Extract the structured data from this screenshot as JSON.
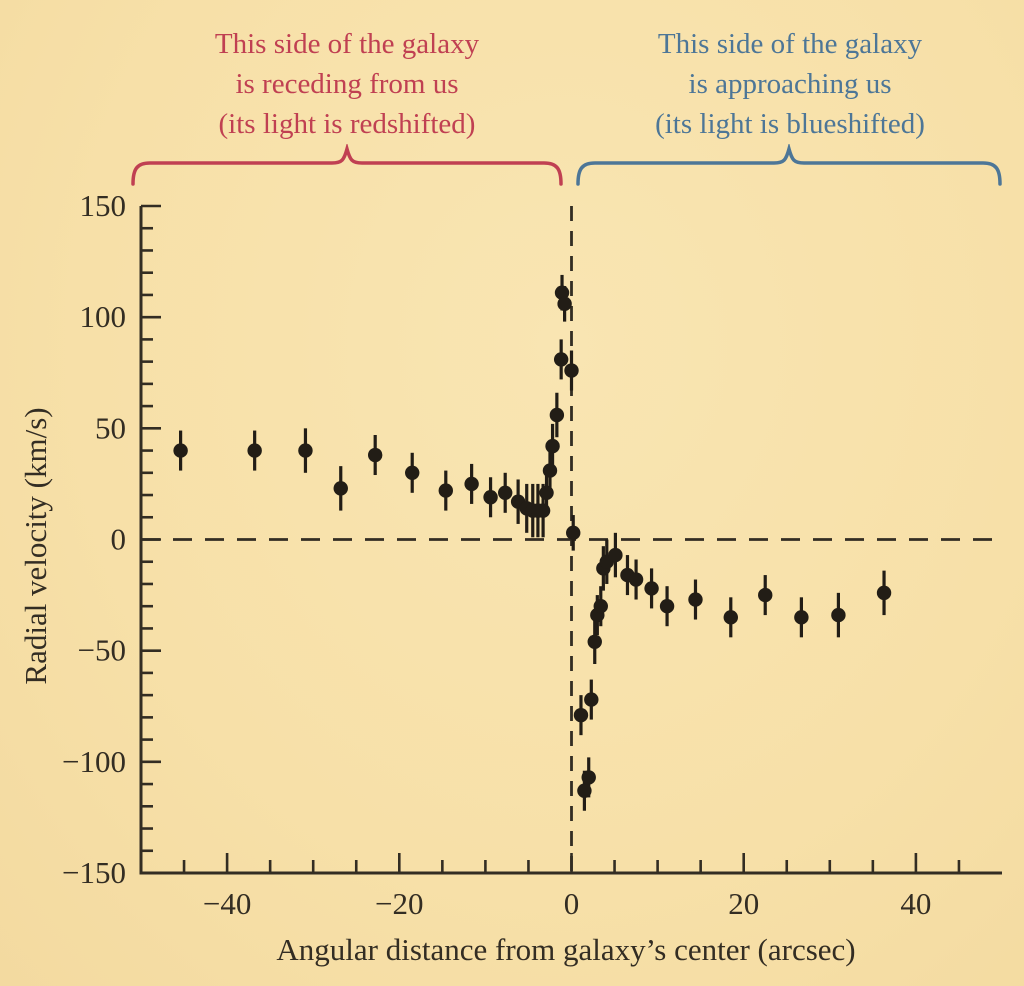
{
  "page": {
    "background": "#f7e0a8",
    "ink": "#332d23",
    "point_color": "#221d16",
    "red_accent": "#c04052",
    "blue_accent": "#4d7697"
  },
  "annotations": {
    "receding": {
      "line1": "This side of the galaxy",
      "line2": "is receding from us",
      "line3": "(its light is redshifted)"
    },
    "approaching": {
      "line1": "This side of the galaxy",
      "line2": "is approaching us",
      "line3": "(its light is blueshifted)"
    }
  },
  "chart_data": {
    "type": "scatter",
    "title": "",
    "xlabel": "Angular distance from galaxy’s center (arcsec)",
    "ylabel": "Radial velocity (km/s)",
    "xlim": [
      -50,
      50
    ],
    "ylim": [
      -150,
      150
    ],
    "x_major_ticks": [
      -40,
      -20,
      0,
      20,
      40
    ],
    "x_minor_step": 5,
    "y_major_ticks": [
      -150,
      -100,
      -50,
      0,
      50,
      100,
      150
    ],
    "y_minor_step": 10,
    "grid": false,
    "reference_lines": {
      "horizontal_at": 0,
      "vertical_at": 0,
      "style": "dashed"
    },
    "legend": "none",
    "series": [
      {
        "name": "measured radial velocity with error bars",
        "marker": "filled-circle",
        "points": [
          [
            -45.4,
            40,
            9
          ],
          [
            -36.8,
            40,
            9
          ],
          [
            -30.9,
            40,
            10
          ],
          [
            -26.8,
            23,
            10
          ],
          [
            -22.8,
            38,
            9
          ],
          [
            -18.5,
            30,
            9
          ],
          [
            -14.6,
            22,
            9
          ],
          [
            -11.6,
            25,
            9
          ],
          [
            -9.4,
            19,
            9
          ],
          [
            -7.7,
            21,
            9
          ],
          [
            -6.2,
            17,
            10
          ],
          [
            -5.2,
            14,
            11
          ],
          [
            -4.5,
            13,
            12
          ],
          [
            -3.9,
            13,
            12
          ],
          [
            -3.3,
            13,
            12
          ],
          [
            -2.9,
            21,
            10
          ],
          [
            -2.5,
            31,
            10
          ],
          [
            -2.2,
            42,
            10
          ],
          [
            -1.7,
            56,
            10
          ],
          [
            -1.2,
            81,
            9
          ],
          [
            -1.1,
            111,
            8
          ],
          [
            -0.8,
            106,
            8
          ],
          [
            0.0,
            76,
            9
          ],
          [
            0.2,
            3,
            8
          ],
          [
            1.1,
            -79,
            9
          ],
          [
            1.5,
            -113,
            9
          ],
          [
            2.0,
            -107,
            9
          ],
          [
            2.3,
            -72,
            9
          ],
          [
            2.7,
            -46,
            10
          ],
          [
            3.0,
            -34,
            9
          ],
          [
            3.4,
            -30,
            9
          ],
          [
            3.7,
            -13,
            10
          ],
          [
            4.1,
            -10,
            10
          ],
          [
            5.1,
            -7,
            10
          ],
          [
            6.5,
            -16,
            9
          ],
          [
            7.5,
            -18,
            9
          ],
          [
            9.3,
            -22,
            9
          ],
          [
            11.1,
            -30,
            9
          ],
          [
            14.4,
            -27,
            9
          ],
          [
            18.5,
            -35,
            9
          ],
          [
            22.5,
            -25,
            9
          ],
          [
            26.7,
            -35,
            9
          ],
          [
            31.0,
            -34,
            10
          ],
          [
            36.3,
            -24,
            10
          ]
        ]
      }
    ]
  }
}
